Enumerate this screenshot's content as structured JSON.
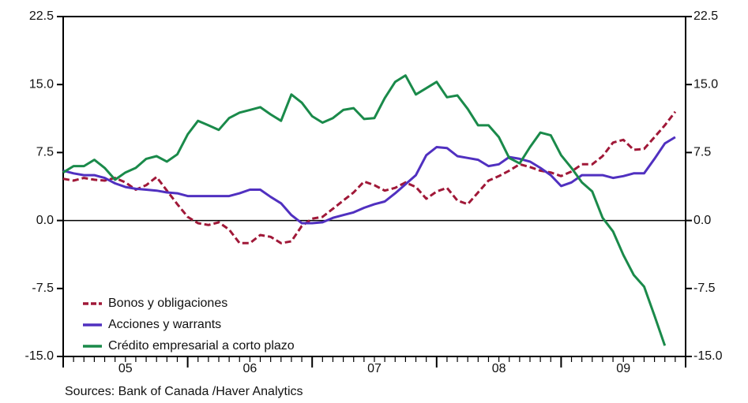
{
  "chart_data": {
    "type": "line",
    "x": [
      0,
      1,
      2,
      3,
      4,
      5,
      6,
      7,
      8,
      9,
      10,
      11,
      12,
      13,
      14,
      15,
      16,
      17,
      18,
      19,
      20,
      21,
      22,
      23,
      24,
      25,
      26,
      27,
      28,
      29,
      30,
      31,
      32,
      33,
      34,
      35,
      36,
      37,
      38,
      39,
      40,
      41,
      42,
      43,
      44,
      45,
      46,
      47,
      48,
      49,
      50,
      51,
      52,
      53,
      54,
      55,
      56,
      57,
      58,
      59
    ],
    "xlim": [
      0,
      60
    ],
    "xticks": [
      {
        "value": 6,
        "label": "05"
      },
      {
        "value": 18,
        "label": "06"
      },
      {
        "value": 30,
        "label": "07"
      },
      {
        "value": 42,
        "label": "08"
      },
      {
        "value": 54,
        "label": "09"
      }
    ],
    "ylim": [
      -15,
      22.5
    ],
    "yticks": [
      {
        "value": -15,
        "label": "-15.0"
      },
      {
        "value": -7.5,
        "label": "-7.5"
      },
      {
        "value": 0,
        "label": "0.0"
      },
      {
        "value": 7.5,
        "label": "7.5"
      },
      {
        "value": 15,
        "label": "15.0"
      },
      {
        "value": 22.5,
        "label": "22.5"
      }
    ],
    "y2lim": [
      -15,
      22.5
    ],
    "y2ticks": [
      {
        "value": -15,
        "label": "-15.0"
      },
      {
        "value": -7.5,
        "label": "-7.5"
      },
      {
        "value": 0,
        "label": "0.0"
      },
      {
        "value": 7.5,
        "label": "7.5"
      },
      {
        "value": 15,
        "label": "15.0"
      },
      {
        "value": 22.5,
        "label": "22.5"
      }
    ],
    "legend": "lower left",
    "source": "Sources:  Bank of Canada /Haver Analytics",
    "series": [
      {
        "name": "Bonos y obligaciones",
        "color": "#a01838",
        "dashed": true,
        "values": [
          4.6,
          4.4,
          4.7,
          4.5,
          4.4,
          4.7,
          4.2,
          3.4,
          3.9,
          4.8,
          3.3,
          1.8,
          0.4,
          -0.3,
          -0.5,
          -0.2,
          -1.0,
          -2.5,
          -2.5,
          -1.6,
          -1.8,
          -2.5,
          -2.3,
          -0.6,
          0.2,
          0.4,
          1.3,
          2.2,
          3.1,
          4.3,
          3.9,
          3.3,
          3.6,
          4.2,
          3.7,
          2.4,
          3.2,
          3.6,
          2.2,
          1.8,
          3.1,
          4.4,
          4.9,
          5.5,
          6.2,
          5.9,
          5.5,
          5.3,
          4.9,
          5.4,
          6.2,
          6.2,
          7.1,
          8.6,
          8.9,
          7.8,
          7.9,
          9.2,
          10.5,
          12.0
        ]
      },
      {
        "name": "Acciones y warrants",
        "color": "#5030c0",
        "dashed": false,
        "values": [
          5.5,
          5.2,
          5.0,
          5.0,
          4.7,
          4.1,
          3.7,
          3.5,
          3.4,
          3.3,
          3.1,
          3.0,
          2.7,
          2.7,
          2.7,
          2.7,
          2.7,
          3.0,
          3.4,
          3.4,
          2.6,
          1.9,
          0.6,
          -0.3,
          -0.3,
          -0.2,
          0.3,
          0.6,
          0.9,
          1.4,
          1.8,
          2.1,
          3.0,
          4.0,
          5.0,
          7.2,
          8.1,
          8.0,
          7.1,
          6.9,
          6.7,
          6.0,
          6.2,
          7.0,
          6.8,
          6.5,
          5.8,
          5.0,
          3.8,
          4.2,
          5.0,
          5.0,
          5.0,
          4.7,
          4.9,
          5.2,
          5.2,
          6.8,
          8.5,
          9.2
        ]
      },
      {
        "name": "Crédito empresarial a corto plazo",
        "color": "#1a8a4a",
        "dashed": false,
        "values": [
          5.3,
          6.0,
          6.0,
          6.7,
          5.8,
          4.5,
          5.3,
          5.8,
          6.8,
          7.1,
          6.5,
          7.3,
          9.5,
          11.0,
          10.5,
          10.0,
          11.3,
          11.9,
          12.2,
          12.5,
          11.7,
          11.0,
          13.9,
          13.0,
          11.5,
          10.8,
          11.3,
          12.2,
          12.4,
          11.2,
          11.3,
          13.5,
          15.3,
          16.0,
          13.9,
          14.6,
          15.3,
          13.6,
          13.8,
          12.3,
          10.5,
          10.5,
          9.2,
          6.9,
          6.3,
          8.1,
          9.7,
          9.4,
          7.2,
          5.8,
          4.2,
          3.2,
          0.3,
          -1.2,
          -3.8,
          -6.0,
          -7.3,
          -10.5,
          -13.8,
          null
        ]
      }
    ]
  }
}
